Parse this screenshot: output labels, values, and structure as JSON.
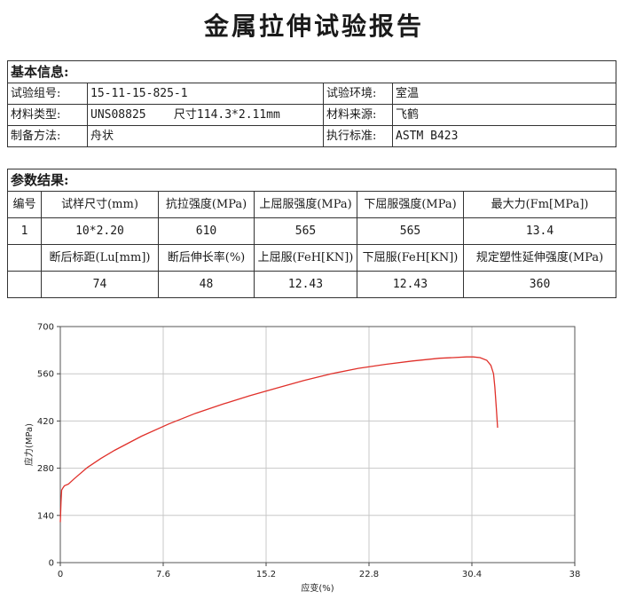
{
  "title": "金属拉伸试验报告",
  "basic": {
    "heading": "基本信息:",
    "rows": [
      {
        "l1": "试验组号:",
        "v1": "15-11-15-825-1",
        "l2": "试验环境:",
        "v2": "室温"
      },
      {
        "l1": "材料类型:",
        "v1": "UNS08825    尺寸114.3*2.11mm",
        "l2": "材料来源:",
        "v2": "飞鹤"
      },
      {
        "l1": "制备方法:",
        "v1": "舟状",
        "l2": "执行标准:",
        "v2": "ASTM B423"
      }
    ]
  },
  "params": {
    "heading": "参数结果:",
    "header1": [
      "编号",
      "试样尺寸(mm)",
      "抗拉强度(MPa)",
      "上屈服强度(MPa)",
      "下屈服强度(MPa)",
      "最大力(Fm[MPa])"
    ],
    "row1": [
      "1",
      "10*2.20",
      "610",
      "565",
      "565",
      "13.4"
    ],
    "header2": [
      "",
      "断后标距(Lu[mm])",
      "断后伸长率(%)",
      "上屈服(FeH[KN])",
      "下屈服(FeH[KN])",
      "规定塑性延伸强度(MPa)"
    ],
    "row2": [
      "",
      "74",
      "48",
      "12.43",
      "12.43",
      "360"
    ]
  },
  "chart_data": {
    "type": "line",
    "xlabel": "应变(%)",
    "ylabel": "应力(MPa)",
    "xlim": [
      0,
      38
    ],
    "ylim": [
      0,
      700
    ],
    "xticks": [
      "0",
      "7.6",
      "15.2",
      "22.8",
      "30.4",
      "38"
    ],
    "yticks": [
      "0",
      "140",
      "280",
      "420",
      "560",
      "700"
    ],
    "grid": true,
    "line_color": "#e0302a",
    "series": [
      {
        "x": [
          0,
          0.05,
          0.1,
          0.2,
          0.3,
          0.6,
          1,
          2,
          3,
          4,
          6,
          8,
          10,
          12,
          14,
          16,
          18,
          20,
          22,
          24,
          26,
          28,
          29,
          30,
          30.5,
          31,
          31.5,
          31.8,
          32.0,
          32.1,
          32.2,
          32.3
        ],
        "y": [
          120,
          180,
          215,
          222,
          228,
          233,
          248,
          282,
          309,
          333,
          375,
          411,
          443,
          470,
          495,
          518,
          540,
          560,
          576,
          588,
          598,
          606,
          608,
          610,
          610,
          608,
          600,
          585,
          560,
          520,
          460,
          400
        ]
      }
    ]
  }
}
